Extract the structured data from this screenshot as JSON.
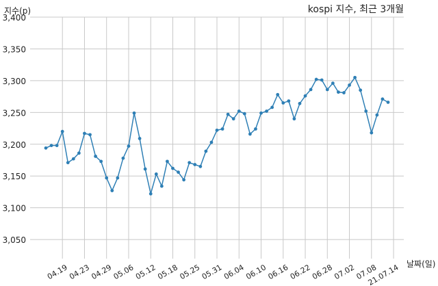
{
  "chart_data": {
    "type": "line",
    "title": "kospi 지수, 최근 3개월",
    "ylabel": "지수(p)",
    "xlabel": "날짜(일)",
    "ylim": [
      3020,
      3400
    ],
    "grid": true,
    "y_ticks": [
      3050,
      3100,
      3150,
      3200,
      3250,
      3300,
      3350,
      3400
    ],
    "y_tick_labels": [
      "3,050",
      "3,100",
      "3,150",
      "3,200",
      "3,250",
      "3,300",
      "3,350",
      "3,400"
    ],
    "x_tick_labels": [
      "04.19",
      "04.23",
      "04.29",
      "05.06",
      "05.12",
      "05.18",
      "05.25",
      "05.31",
      "06.04",
      "06.10",
      "06.16",
      "06.22",
      "06.28",
      "07.02",
      "07.08",
      "21.07.14"
    ],
    "x_tick_indices": [
      3,
      7,
      11,
      15,
      19,
      23,
      27,
      31,
      35,
      39,
      43,
      47,
      51,
      55,
      59,
      63
    ],
    "series": [
      {
        "color": "#2e7fb5",
        "values": [
          3194,
          3198,
          3198,
          3220,
          3171,
          3177,
          3186,
          3217,
          3215,
          3181,
          3173,
          3147,
          3127,
          3147,
          3178,
          3197,
          3249,
          3209,
          3161,
          3122,
          3153,
          3134,
          3173,
          3162,
          3156,
          3144,
          3171,
          3168,
          3165,
          3189,
          3203,
          3222,
          3224,
          3247,
          3240,
          3252,
          3248,
          3216,
          3224,
          3249,
          3252,
          3258,
          3278,
          3265,
          3268,
          3240,
          3264,
          3276,
          3286,
          3302,
          3301,
          3286,
          3296,
          3282,
          3281,
          3293,
          3305,
          3285,
          3252,
          3218,
          3246,
          3271,
          3266
        ]
      }
    ]
  }
}
